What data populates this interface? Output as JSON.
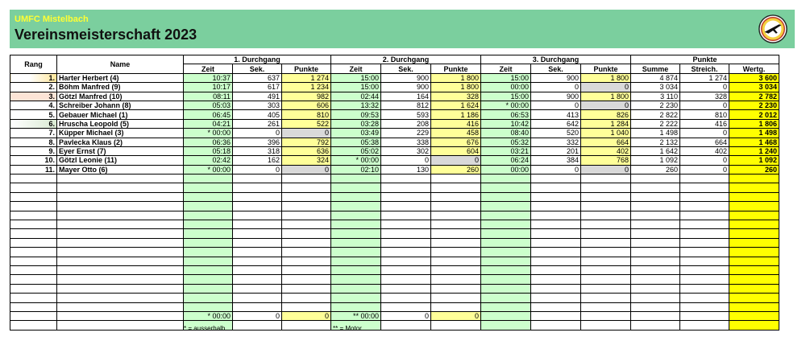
{
  "header": {
    "club": "UMFC Mistelbach",
    "title": "Vereinsmeisterschaft 2023"
  },
  "table": {
    "col_rang": "Rang",
    "col_name": "Name",
    "groups": [
      "1. Durchgang",
      "2. Durchgang",
      "3. Durchgang",
      "Punkte"
    ],
    "sub_zeit": "Zeit",
    "sub_sek": "Sek.",
    "sub_punkte": "Punkte",
    "sub_summe": "Summe",
    "sub_streich": "Streich.",
    "sub_wertg": "Wertg.",
    "rows": [
      {
        "rank": "1.",
        "name": "Harter Herbert (4)",
        "z1": "10:37",
        "s1": "637",
        "p1": "1 274",
        "z2": "15:00",
        "s2": "900",
        "p2": "1 800",
        "z3": "15:00",
        "s3": "900",
        "p3": "1 800",
        "sum": "4 874",
        "str": "1 274",
        "wer": "3 600"
      },
      {
        "rank": "2.",
        "name": "Böhm Manfred (9)",
        "z1": "10:17",
        "s1": "617",
        "p1": "1 234",
        "z2": "15:00",
        "s2": "900",
        "p2": "1 800",
        "z3": "00:00",
        "s3": "0",
        "p3": "0",
        "sum": "3 034",
        "str": "0",
        "wer": "3 034"
      },
      {
        "rank": "3.",
        "name": "Götzl Manfred (10)",
        "z1": "08:11",
        "s1": "491",
        "p1": "982",
        "z2": "02:44",
        "s2": "164",
        "p2": "328",
        "z3": "15:00",
        "s3": "900",
        "p3": "1 800",
        "sum": "3 110",
        "str": "328",
        "wer": "2 782"
      },
      {
        "rank": "4.",
        "name": "Schreiber Johann (8)",
        "z1": "05:03",
        "s1": "303",
        "p1": "606",
        "z2": "13:32",
        "s2": "812",
        "p2": "1 624",
        "z3": "* 00:00",
        "s3": "0",
        "p3": "0",
        "sum": "2 230",
        "str": "0",
        "wer": "2 230"
      },
      {
        "rank": "5.",
        "name": "Gebauer Michael (1)",
        "z1": "06:45",
        "s1": "405",
        "p1": "810",
        "z2": "09:53",
        "s2": "593",
        "p2": "1 186",
        "z3": "06:53",
        "s3": "413",
        "p3": "826",
        "sum": "2 822",
        "str": "810",
        "wer": "2 012"
      },
      {
        "rank": "6.",
        "name": "Hruscha Leopold (5)",
        "z1": "04:21",
        "s1": "261",
        "p1": "522",
        "z2": "03:28",
        "s2": "208",
        "p2": "416",
        "z3": "10:42",
        "s3": "642",
        "p3": "1 284",
        "sum": "2 222",
        "str": "416",
        "wer": "1 806"
      },
      {
        "rank": "7.",
        "name": "Küpper Michael (3)",
        "z1": "* 00:00",
        "s1": "0",
        "p1": "0",
        "z2": "03:49",
        "s2": "229",
        "p2": "458",
        "z3": "08:40",
        "s3": "520",
        "p3": "1 040",
        "sum": "1 498",
        "str": "0",
        "wer": "1 498"
      },
      {
        "rank": "8.",
        "name": "Pavlecka Klaus (2)",
        "z1": "06:36",
        "s1": "396",
        "p1": "792",
        "z2": "05:38",
        "s2": "338",
        "p2": "676",
        "z3": "05:32",
        "s3": "332",
        "p3": "664",
        "sum": "2 132",
        "str": "664",
        "wer": "1 468"
      },
      {
        "rank": "9.",
        "name": "Eyer Ernst (7)",
        "z1": "05:18",
        "s1": "318",
        "p1": "636",
        "z2": "05:02",
        "s2": "302",
        "p2": "604",
        "z3": "03:21",
        "s3": "201",
        "p3": "402",
        "sum": "1 642",
        "str": "402",
        "wer": "1 240"
      },
      {
        "rank": "10.",
        "name": "Götzl Leonie (11)",
        "z1": "02:42",
        "s1": "162",
        "p1": "324",
        "z2": "* 00:00",
        "s2": "0",
        "p2": "0",
        "z3": "06:24",
        "s3": "384",
        "p3": "768",
        "sum": "1 092",
        "str": "0",
        "wer": "1 092"
      },
      {
        "rank": "11.",
        "name": "Mayer Otto (6)",
        "z1": "* 00:00",
        "s1": "0",
        "p1": "0",
        "z2": "02:10",
        "s2": "130",
        "p2": "260",
        "z3": "00:00",
        "s3": "0",
        "p3": "0",
        "sum": "260",
        "str": "0",
        "wer": "260"
      }
    ],
    "extra_row": {
      "z1": "* 00:00",
      "s1": "0",
      "p1": "0",
      "z2": "** 00:00",
      "s2": "0",
      "p2": "0"
    }
  },
  "notes": {
    "star": "* = ausserhalb",
    "double_star": "** = Motor"
  },
  "colors": {
    "banner": "#7bcf9e",
    "green_cell": "#ccffcc",
    "yellow_cell": "#ffff99",
    "grey_cell": "#d9d9d9",
    "total_cell": "#ffff00"
  },
  "icons": {
    "logo": "club-logo-icon"
  }
}
